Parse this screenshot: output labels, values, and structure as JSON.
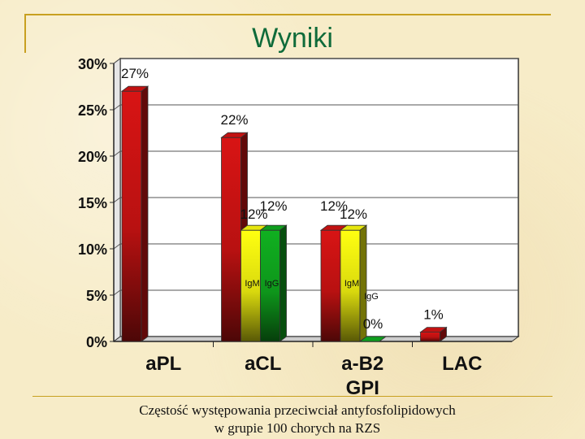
{
  "slide": {
    "title": "Wyniki",
    "caption_line1": "Częstość występowania przeciwciał antyfosfolipidowych",
    "caption_line2": "w grupie 100 chorych na RZS"
  },
  "chart_data": {
    "type": "bar",
    "title": "",
    "xlabel": "",
    "ylabel": "",
    "ylim": [
      0,
      30
    ],
    "yticks": [
      "0%",
      "5%",
      "10%",
      "15%",
      "20%",
      "25%",
      "30%"
    ],
    "grid": true,
    "style": "3d",
    "categories": [
      "aPL",
      "aCL",
      "a-B2 GPI",
      "LAC"
    ],
    "bars": [
      {
        "category": "aPL",
        "value": 27,
        "value_label": "27%",
        "color": "#d81414",
        "name": ""
      },
      {
        "category": "aCL",
        "value": 22,
        "value_label": "22%",
        "color": "#d81414",
        "name": ""
      },
      {
        "category": "aCL",
        "value": 12,
        "value_label": "12%",
        "color": "#ffff10",
        "name": "IgM"
      },
      {
        "category": "aCL",
        "value": 12,
        "value_label": "12%",
        "color": "#10b020",
        "name": "IgG"
      },
      {
        "category": "a-B2 GPI",
        "value": 12,
        "value_label": "12%",
        "color": "#d81414",
        "name": ""
      },
      {
        "category": "a-B2 GPI",
        "value": 12,
        "value_label": "12%",
        "color": "#ffff10",
        "name": "IgM"
      },
      {
        "category": "a-B2 GPI",
        "value": 0,
        "value_label": "0%",
        "color": "#10b020",
        "name": "IgG"
      },
      {
        "category": "LAC",
        "value": 1,
        "value_label": "1%",
        "color": "#d81414",
        "name": ""
      }
    ]
  }
}
